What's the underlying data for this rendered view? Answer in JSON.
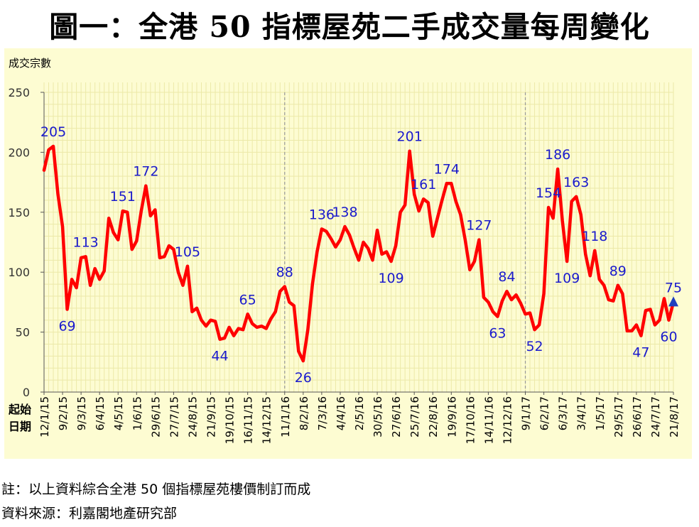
{
  "title": "圖一：全港 50 指標屋苑二手成交量每周變化",
  "notes": {
    "note1": "註：以上資料綜合全港 50 個指標屋苑樓價制訂而成",
    "note2": "資料來源：利嘉閣地產研究部"
  },
  "colors": {
    "background": "#fdfcd2",
    "line": "#ff0000",
    "label": "#1a1acc",
    "marker": "#1f3fbf",
    "divider": "#999999"
  },
  "chart_data": {
    "type": "line",
    "title": "圖一：全港 50 指標屋苑二手成交量每周變化",
    "ylabel": "成交宗數",
    "xlabel": "起始日期",
    "xlabel_lines": [
      "起始",
      "日期"
    ],
    "ylim": [
      0,
      250
    ],
    "yticks": [
      0,
      50,
      100,
      150,
      200,
      250
    ],
    "grid": true,
    "legend": "none",
    "x_tick_labels": [
      {
        "i": 0,
        "label": "12/1/15"
      },
      {
        "i": 4,
        "label": "9/2/15"
      },
      {
        "i": 8,
        "label": "9/3/15"
      },
      {
        "i": 12,
        "label": "6/4/15"
      },
      {
        "i": 16,
        "label": "4/5/15"
      },
      {
        "i": 20,
        "label": "1/6/15"
      },
      {
        "i": 24,
        "label": "29/6/15"
      },
      {
        "i": 28,
        "label": "27/7/15"
      },
      {
        "i": 32,
        "label": "24/8/15"
      },
      {
        "i": 36,
        "label": "21/9/15"
      },
      {
        "i": 40,
        "label": "19/10/15"
      },
      {
        "i": 44,
        "label": "16/11/15"
      },
      {
        "i": 48,
        "label": "14/12/15"
      },
      {
        "i": 52,
        "label": "11/1/16"
      },
      {
        "i": 56,
        "label": "8/2/16"
      },
      {
        "i": 60,
        "label": "7/3/16"
      },
      {
        "i": 64,
        "label": "4/4/16"
      },
      {
        "i": 68,
        "label": "2/5/16"
      },
      {
        "i": 72,
        "label": "30/5/16"
      },
      {
        "i": 76,
        "label": "27/6/16"
      },
      {
        "i": 80,
        "label": "25/7/16"
      },
      {
        "i": 84,
        "label": "22/8/16"
      },
      {
        "i": 88,
        "label": "19/9/16"
      },
      {
        "i": 92,
        "label": "17/10/16"
      },
      {
        "i": 96,
        "label": "14/11/16"
      },
      {
        "i": 100,
        "label": "12/12/16"
      },
      {
        "i": 104,
        "label": "9/1/17"
      },
      {
        "i": 108,
        "label": "6/2/17"
      },
      {
        "i": 112,
        "label": "6/3/17"
      },
      {
        "i": 116,
        "label": "3/4/17"
      },
      {
        "i": 120,
        "label": "1/5/17"
      },
      {
        "i": 124,
        "label": "29/5/17"
      },
      {
        "i": 128,
        "label": "26/6/17"
      },
      {
        "i": 132,
        "label": "24/7/17"
      },
      {
        "i": 136,
        "label": "21/8/17"
      }
    ],
    "year_dividers": [
      52,
      104
    ],
    "series": [
      {
        "values": [
          185,
          202,
          205,
          165,
          138,
          69,
          94,
          87,
          112,
          113,
          89,
          103,
          94,
          101,
          145,
          133,
          127,
          151,
          150,
          119,
          126,
          151,
          172,
          147,
          152,
          112,
          113,
          122,
          119,
          100,
          89,
          105,
          67,
          70,
          60,
          55,
          60,
          59,
          44,
          45,
          54,
          47,
          53,
          52,
          65,
          57,
          54,
          55,
          53,
          61,
          67,
          84,
          88,
          75,
          72,
          34,
          26,
          52,
          90,
          117,
          136,
          134,
          128,
          121,
          127,
          138,
          131,
          120,
          110,
          125,
          120,
          110,
          135,
          115,
          117,
          109,
          122,
          150,
          156,
          201,
          165,
          151,
          161,
          158,
          130,
          145,
          160,
          174,
          174,
          159,
          148,
          127,
          102,
          109,
          127,
          79,
          75,
          67,
          63,
          76,
          84,
          77,
          81,
          74,
          65,
          66,
          52,
          56,
          82,
          154,
          145,
          186,
          143,
          109,
          159,
          163,
          148,
          115,
          97,
          118,
          94,
          89,
          77,
          76,
          89,
          82,
          51,
          51,
          56,
          47,
          68,
          69,
          56,
          60,
          78,
          60,
          75
        ]
      }
    ],
    "annotations": [
      {
        "i": 2,
        "text": "205",
        "pos": "above"
      },
      {
        "i": 5,
        "text": "69",
        "pos": "below"
      },
      {
        "i": 9,
        "text": "113",
        "pos": "above"
      },
      {
        "i": 17,
        "text": "151",
        "pos": "above"
      },
      {
        "i": 22,
        "text": "172",
        "pos": "above"
      },
      {
        "i": 31,
        "text": "105",
        "pos": "above"
      },
      {
        "i": 38,
        "text": "44",
        "pos": "below"
      },
      {
        "i": 44,
        "text": "65",
        "pos": "above"
      },
      {
        "i": 52,
        "text": "88",
        "pos": "above"
      },
      {
        "i": 56,
        "text": "26",
        "pos": "below"
      },
      {
        "i": 60,
        "text": "136",
        "pos": "above"
      },
      {
        "i": 65,
        "text": "138",
        "pos": "above"
      },
      {
        "i": 75,
        "text": "109",
        "pos": "below"
      },
      {
        "i": 79,
        "text": "201",
        "pos": "above"
      },
      {
        "i": 82,
        "text": "161",
        "pos": "above"
      },
      {
        "i": 87,
        "text": "174",
        "pos": "above"
      },
      {
        "i": 94,
        "text": "127",
        "pos": "above"
      },
      {
        "i": 98,
        "text": "63",
        "pos": "below"
      },
      {
        "i": 100,
        "text": "84",
        "pos": "above"
      },
      {
        "i": 106,
        "text": "52",
        "pos": "below"
      },
      {
        "i": 109,
        "text": "154",
        "pos": "above"
      },
      {
        "i": 111,
        "text": "186",
        "pos": "above"
      },
      {
        "i": 113,
        "text": "109",
        "pos": "below"
      },
      {
        "i": 115,
        "text": "163",
        "pos": "above"
      },
      {
        "i": 119,
        "text": "118",
        "pos": "above"
      },
      {
        "i": 124,
        "text": "89",
        "pos": "above"
      },
      {
        "i": 129,
        "text": "47",
        "pos": "below"
      },
      {
        "i": 135,
        "text": "60",
        "pos": "below"
      },
      {
        "i": 136,
        "text": "75",
        "pos": "above"
      }
    ],
    "marker": {
      "i": 136,
      "shape": "triangle-up"
    }
  }
}
